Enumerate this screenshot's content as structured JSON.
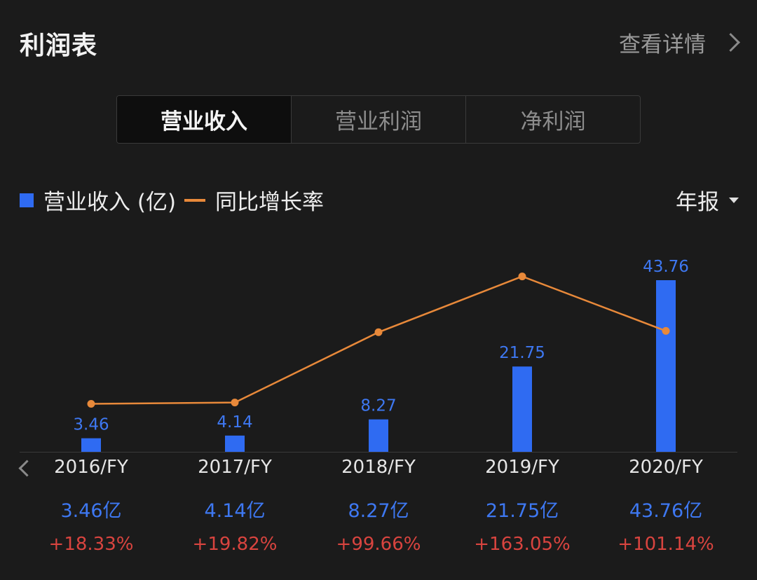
{
  "header": {
    "title": "利润表",
    "detail_label": "查看详情"
  },
  "tabs": [
    {
      "label": "营业收入",
      "active": true
    },
    {
      "label": "营业利润",
      "active": false
    },
    {
      "label": "净利润",
      "active": false
    }
  ],
  "legend": {
    "bar_label": "营业收入 (亿)",
    "line_label": "同比增长率"
  },
  "period_selector": {
    "label": "年报"
  },
  "colors": {
    "bar": "#2f6bf2",
    "line": "#e8893a",
    "negative_red": "#d9443f"
  },
  "chart_data": {
    "type": "bar",
    "categories": [
      "2016/FY",
      "2017/FY",
      "2018/FY",
      "2019/FY",
      "2020/FY"
    ],
    "series": [
      {
        "name": "营业收入 (亿)",
        "type": "bar",
        "values": [
          3.46,
          4.14,
          8.27,
          21.75,
          43.76
        ]
      },
      {
        "name": "同比增长率",
        "type": "line",
        "values": [
          18.33,
          19.82,
          99.66,
          163.05,
          101.14
        ]
      }
    ],
    "bar_labels": [
      "3.46",
      "4.14",
      "8.27",
      "21.75",
      "43.76"
    ],
    "value_labels": [
      "3.46亿",
      "4.14亿",
      "8.27亿",
      "21.75亿",
      "43.76亿"
    ],
    "growth_labels": [
      "+18.33%",
      "+19.82%",
      "+99.66%",
      "+163.05%",
      "+101.14%"
    ],
    "grid": false,
    "legend_position": "top-left"
  }
}
